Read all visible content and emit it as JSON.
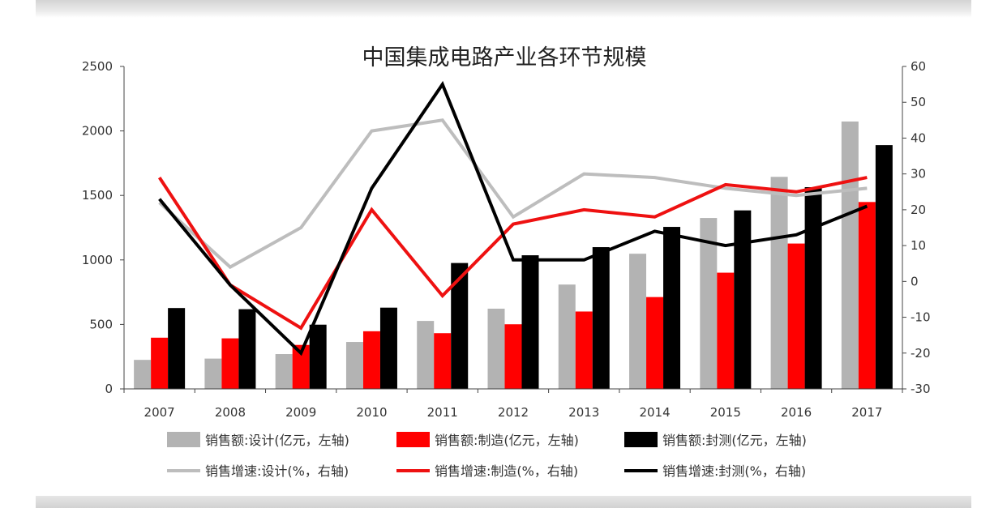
{
  "chart_data": {
    "type": "bar",
    "title": "中国集成电路产业各环节规模",
    "categories": [
      "2007",
      "2008",
      "2009",
      "2010",
      "2011",
      "2012",
      "2013",
      "2014",
      "2015",
      "2016",
      "2017"
    ],
    "y_left": {
      "range": [
        0,
        2500
      ],
      "ticks": [
        0,
        500,
        1000,
        1500,
        2000,
        2500
      ]
    },
    "y_right": {
      "range": [
        -30,
        60
      ],
      "ticks": [
        -30,
        -20,
        -10,
        0,
        10,
        20,
        30,
        40,
        50,
        60
      ]
    },
    "grid": false,
    "legend_position": "bottom",
    "bar_series": [
      {
        "name": "销售额:设计(亿元，左轴)",
        "color": "#b3b3b3",
        "axis": "left",
        "values": [
          225,
          235,
          270,
          364,
          527,
          622,
          809,
          1048,
          1325,
          1644,
          2073
        ]
      },
      {
        "name": "销售额:制造(亿元，左轴)",
        "color": "#ff0000",
        "axis": "left",
        "values": [
          397,
          392,
          341,
          447,
          432,
          501,
          600,
          712,
          901,
          1127,
          1449
        ]
      },
      {
        "name": "销售额:封测(亿元，左轴)",
        "color": "#000000",
        "axis": "left",
        "values": [
          627,
          618,
          498,
          630,
          976,
          1036,
          1099,
          1256,
          1384,
          1564,
          1890
        ]
      }
    ],
    "line_series": [
      {
        "name": "销售增速:设计(%，右轴)",
        "color": "#bdbdbd",
        "axis": "right",
        "values": [
          22,
          4,
          15,
          42,
          45,
          18,
          30,
          29,
          26,
          24,
          26
        ]
      },
      {
        "name": "销售增速:制造(%，右轴)",
        "color": "#ee1111",
        "axis": "right",
        "values": [
          29,
          -1,
          -13,
          20,
          -4,
          16,
          20,
          18,
          27,
          25,
          29
        ]
      },
      {
        "name": "销售增速:封测(%，右轴)",
        "color": "#000000",
        "axis": "right",
        "values": [
          23,
          -1,
          -20,
          26,
          55,
          6,
          6,
          14,
          10,
          13,
          21
        ]
      }
    ]
  }
}
